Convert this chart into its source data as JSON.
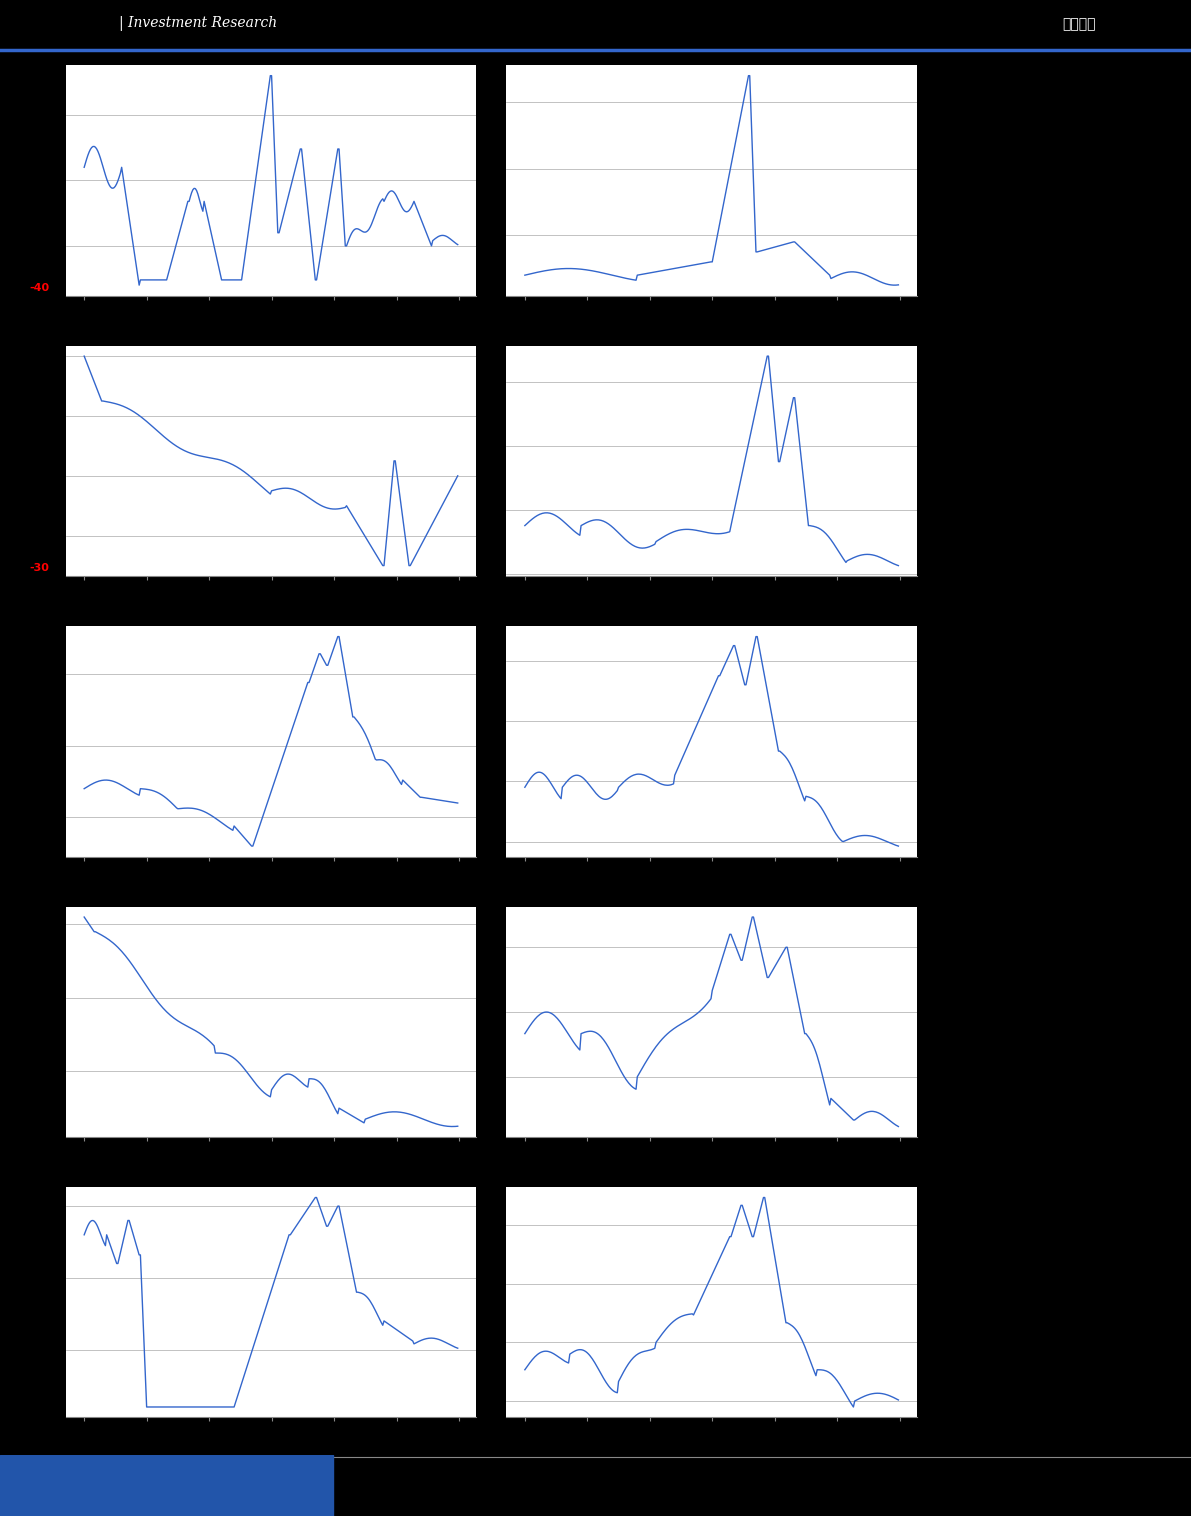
{
  "background_color": "#000000",
  "chart_bg": "#ffffff",
  "line_color": "#3366cc",
  "line_width": 1.0,
  "header_bg": "#000000",
  "footer_bg": "#000000",
  "separator_color": "#888888",
  "title_text": "Investment Research",
  "title_right": "估值周报",
  "n_rows": 5,
  "n_cols": 2,
  "red_label_1": "-40",
  "red_label_2": "-30"
}
